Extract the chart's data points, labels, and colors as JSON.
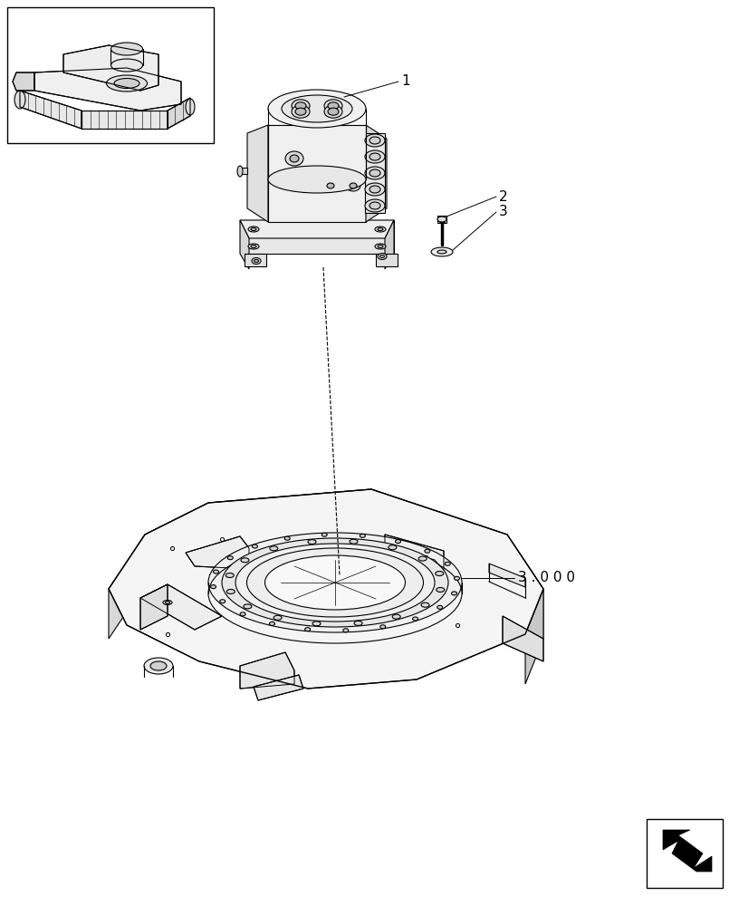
{
  "bg_color": "#ffffff",
  "lc": "#000000",
  "lc_gray": "#aaaaaa",
  "label_1": "1",
  "label_2": "2",
  "label_3": "3",
  "label_3000": "3 . 0 0 0",
  "fig_w": 8.16,
  "fig_h": 10.0,
  "dpi": 100
}
